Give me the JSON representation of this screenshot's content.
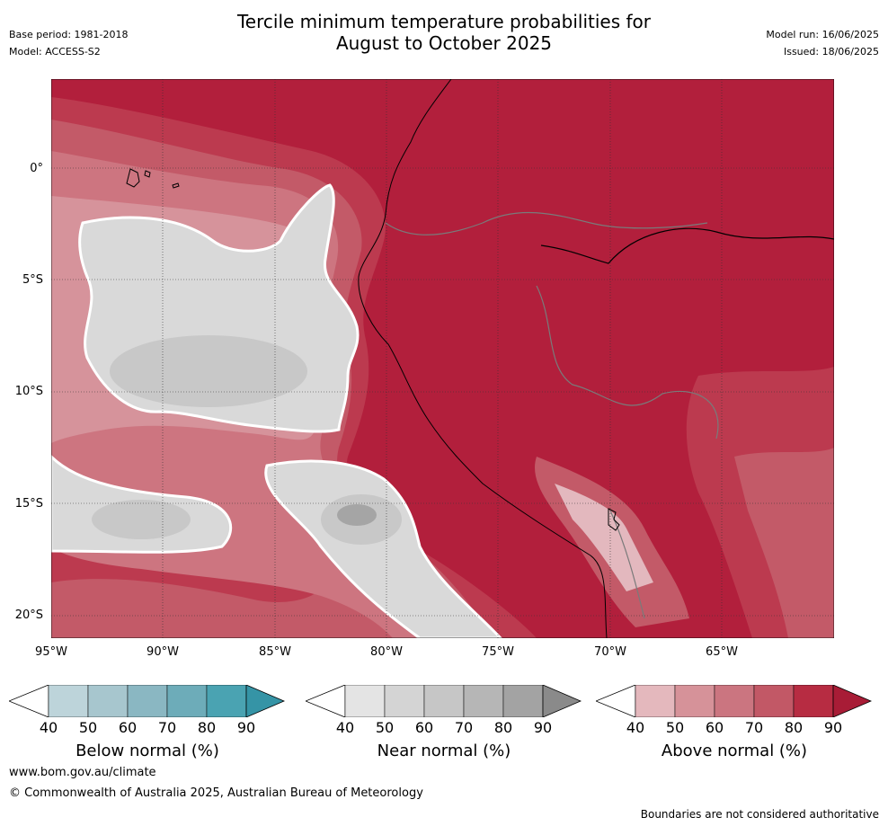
{
  "title": {
    "line1": "Tercile minimum temperature probabilities for",
    "line2": "August to October 2025"
  },
  "meta": {
    "base_period": "Base period: 1981-2018",
    "model": "Model: ACCESS-S2",
    "model_run": "Model run: 16/06/2025",
    "issued": "Issued: 18/06/2025"
  },
  "axes": {
    "lat_labels": [
      "0°",
      "5°S",
      "10°S",
      "15°S",
      "20°S"
    ],
    "lon_labels": [
      "95°W",
      "90°W",
      "85°W",
      "80°W",
      "75°W",
      "70°W",
      "65°W"
    ]
  },
  "colorbars": [
    {
      "title": "Below normal (%)",
      "ticks": [
        "40",
        "50",
        "60",
        "70",
        "80",
        "90"
      ],
      "colors": [
        "#ffffff",
        "#bdd4da",
        "#a7c6ce",
        "#8ab7c2",
        "#6dacb9",
        "#4aa3b2",
        "#3594a6"
      ]
    },
    {
      "title": "Near normal (%)",
      "ticks": [
        "40",
        "50",
        "60",
        "70",
        "80",
        "90"
      ],
      "colors": [
        "#ffffff",
        "#e4e4e4",
        "#d4d4d4",
        "#c6c6c6",
        "#b6b6b6",
        "#a3a3a3",
        "#8a8a8a"
      ]
    },
    {
      "title": "Above normal (%)",
      "ticks": [
        "40",
        "50",
        "60",
        "70",
        "80",
        "90"
      ],
      "colors": [
        "#ffffff",
        "#e4b8bd",
        "#d69299",
        "#cb7580",
        "#c25866",
        "#b72c42",
        "#a81c36"
      ]
    }
  ],
  "map_colors": {
    "above_90": "#b21f3c",
    "above_80": "#bc3a4f",
    "above_70": "#c35a68",
    "above_60": "#cd7580",
    "above_50": "#d6939b",
    "above_40": "#e3b8be",
    "near_50": "#d9d9d9",
    "near_60": "#c8c8c8",
    "near_70": "#a5a5a5"
  },
  "footer": {
    "url": "www.bom.gov.au/climate",
    "copyright": "© Commonwealth of Australia 2025, Australian Bureau of Meteorology",
    "disclaimer": "Boundaries are not considered authoritative"
  }
}
